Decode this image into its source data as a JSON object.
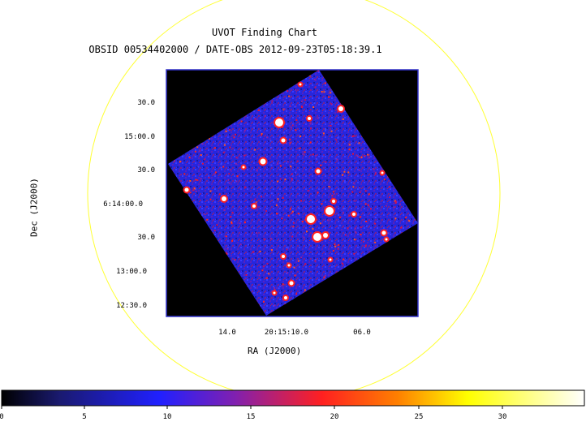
{
  "title": "UVOT Finding Chart",
  "subtitle": "OBSID 00534402000 / DATE-OBS 2012-09-23T05:18:39.1",
  "axes": {
    "xlabel": "RA (J2000)",
    "ylabel": "Dec (J2000)",
    "dec_ticks": [
      "30.0",
      "15:00.0",
      "30.0",
      "6:14:00.0",
      "30.0",
      "13:00.0",
      "12:30.0"
    ],
    "ra_ticks": [
      "14.0",
      "20:15:10.0",
      "06.0"
    ]
  },
  "colorbar": {
    "ticks": [
      "0",
      "5",
      "10",
      "15",
      "20",
      "25",
      "30"
    ],
    "colors": [
      "#000000",
      "#1a1a8c",
      "#2020ff",
      "#a020a0",
      "#ff2020",
      "#ff8000",
      "#ffff00",
      "#ffffff"
    ]
  },
  "colors": {
    "circle": "#ffff33",
    "frame": "#3333cc",
    "field_background": "#000000",
    "field_noise_base": "#2a2ae0"
  }
}
